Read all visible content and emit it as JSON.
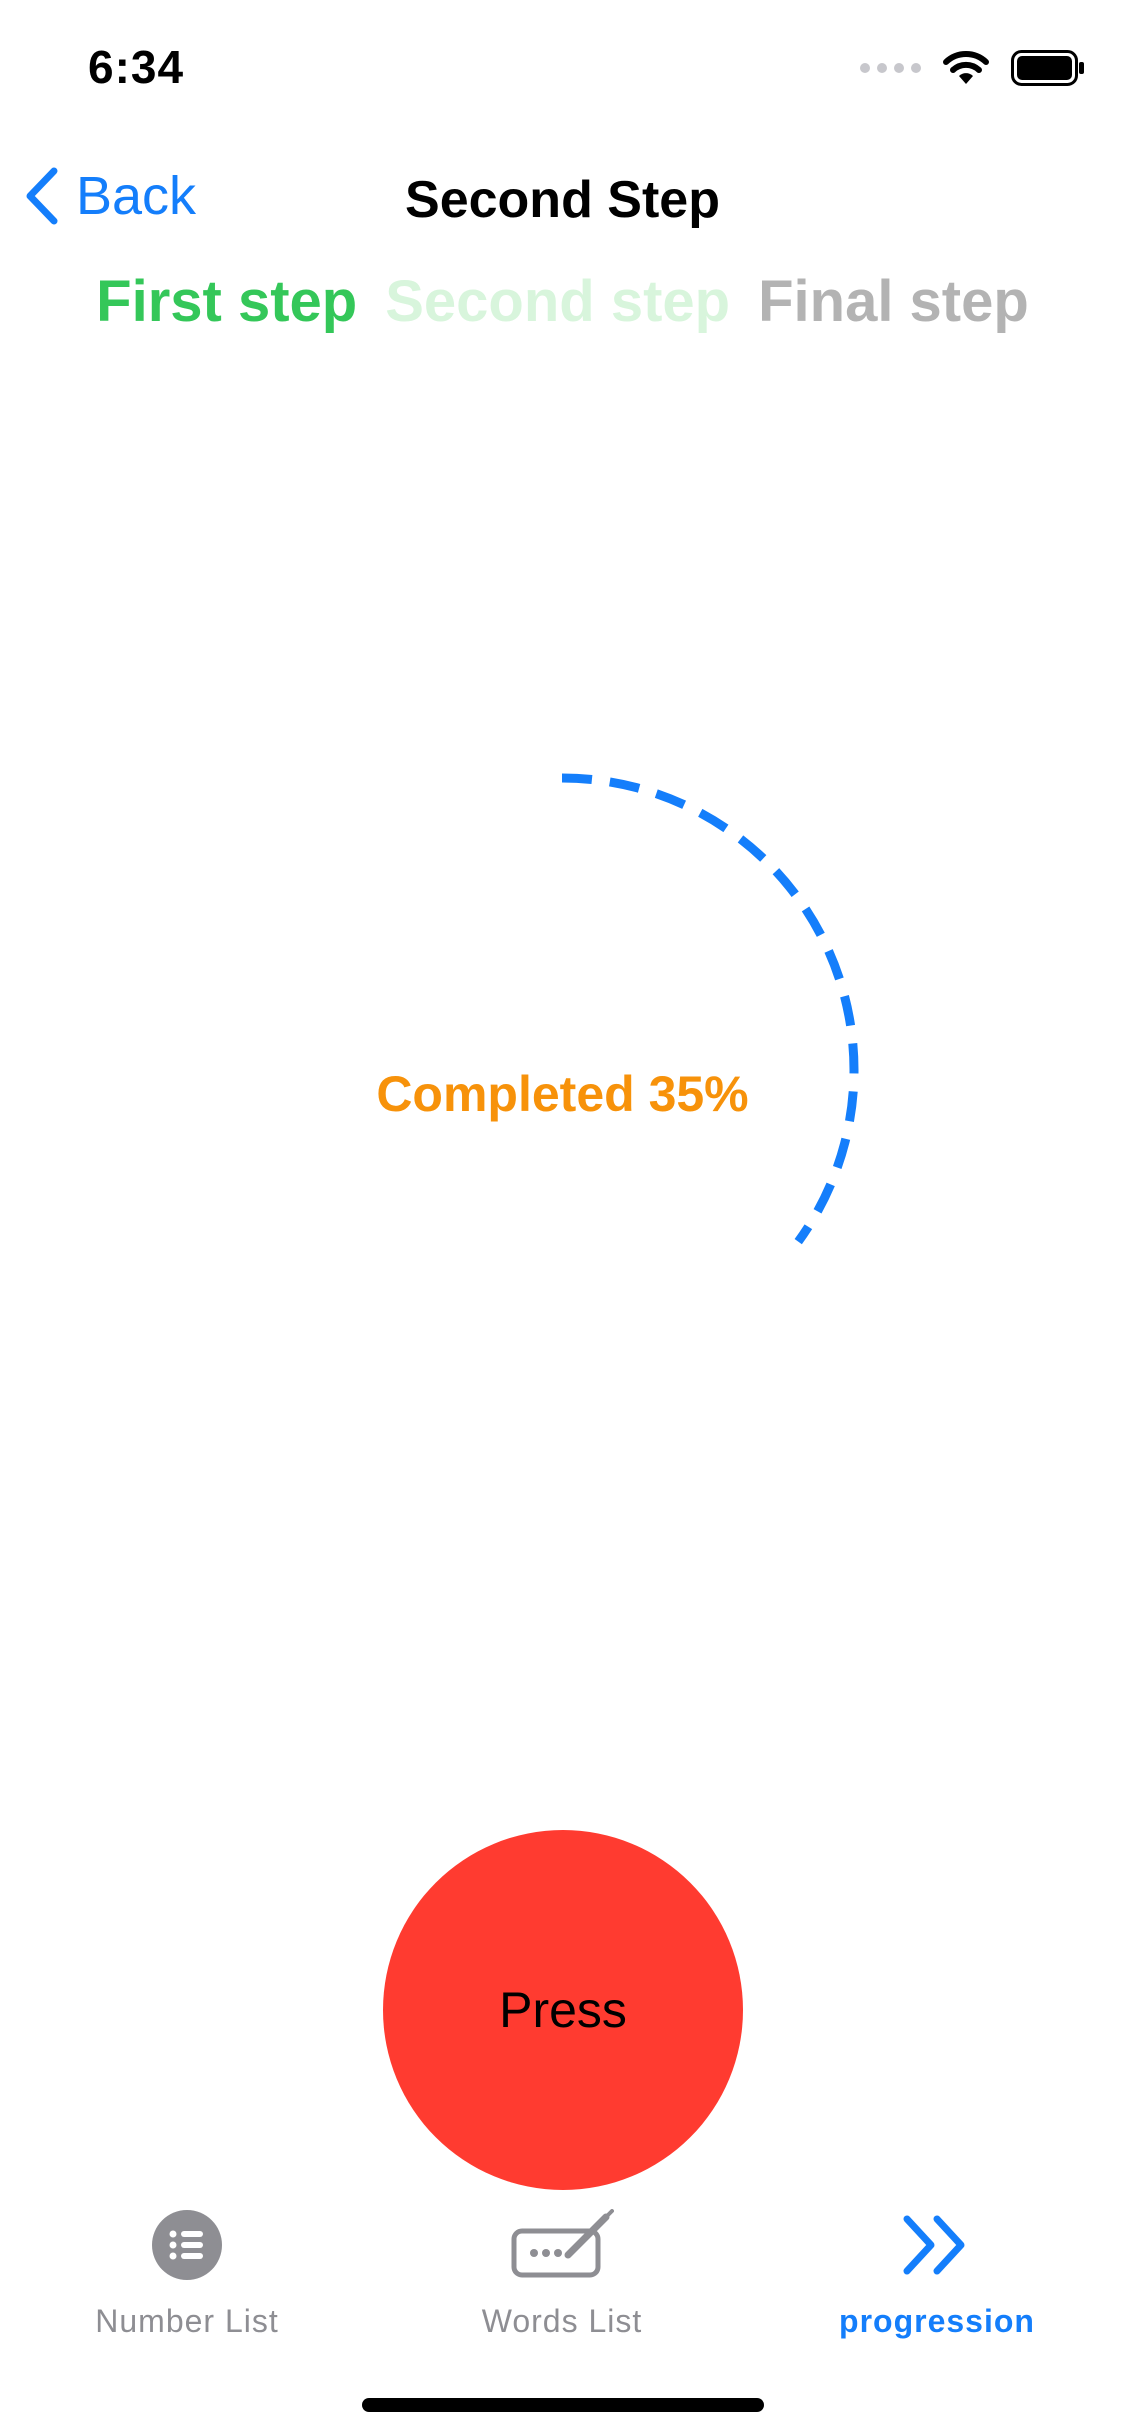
{
  "status_bar": {
    "time": "6:34"
  },
  "nav": {
    "back_label": "Back",
    "title": "Second Step"
  },
  "steps": {
    "first": "First step",
    "second": "Second step",
    "final": "Final step"
  },
  "progress": {
    "label": "Completed 35%",
    "percent": 35,
    "color": "#147efb"
  },
  "press_button": {
    "label": "Press",
    "color": "#ff3b30"
  },
  "tabs": [
    {
      "label": "Number List",
      "icon": "list-bullet-circle-icon",
      "selected": false
    },
    {
      "label": "Words List",
      "icon": "keyboard-pencil-icon",
      "selected": false
    },
    {
      "label": "progression",
      "icon": "double-chevron-right-icon",
      "selected": true
    }
  ],
  "colors": {
    "accent": "#147efb",
    "success": "#34c759",
    "warning": "#f7920a",
    "danger": "#ff3b30"
  }
}
